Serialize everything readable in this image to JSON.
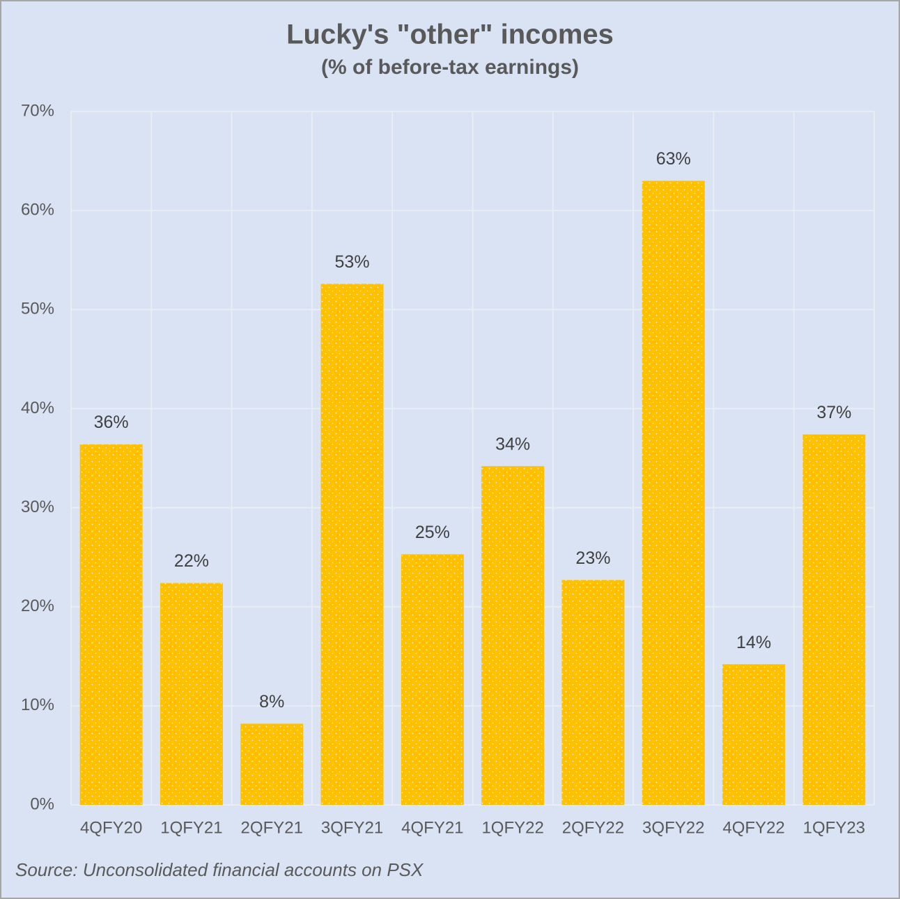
{
  "chart_data": {
    "type": "bar",
    "title": "Lucky's \"other\" incomes",
    "subtitle": "(% of before-tax earnings)",
    "categories": [
      "4QFY20",
      "1QFY21",
      "2QFY21",
      "3QFY21",
      "4QFY21",
      "1QFY22",
      "2QFY22",
      "3QFY22",
      "4QFY22",
      "1QFY23"
    ],
    "values": [
      36.4,
      22.4,
      8.2,
      52.6,
      25.3,
      34.2,
      22.7,
      63.0,
      14.2,
      37.4
    ],
    "value_labels": [
      "36%",
      "22%",
      "8%",
      "53%",
      "25%",
      "34%",
      "23%",
      "63%",
      "14%",
      "37%"
    ],
    "color": "#ffc000",
    "ylim": [
      0,
      70
    ],
    "yticks": [
      {
        "value": 0,
        "label": "0%"
      },
      {
        "value": 10,
        "label": "10%"
      },
      {
        "value": 20,
        "label": "20%"
      },
      {
        "value": 30,
        "label": "30%"
      },
      {
        "value": 40,
        "label": "40%"
      },
      {
        "value": 50,
        "label": "50%"
      },
      {
        "value": 60,
        "label": "60%"
      },
      {
        "value": 70,
        "label": "70%"
      }
    ],
    "grid": true,
    "source": "Source: Unconsolidated financial accounts on PSX"
  }
}
